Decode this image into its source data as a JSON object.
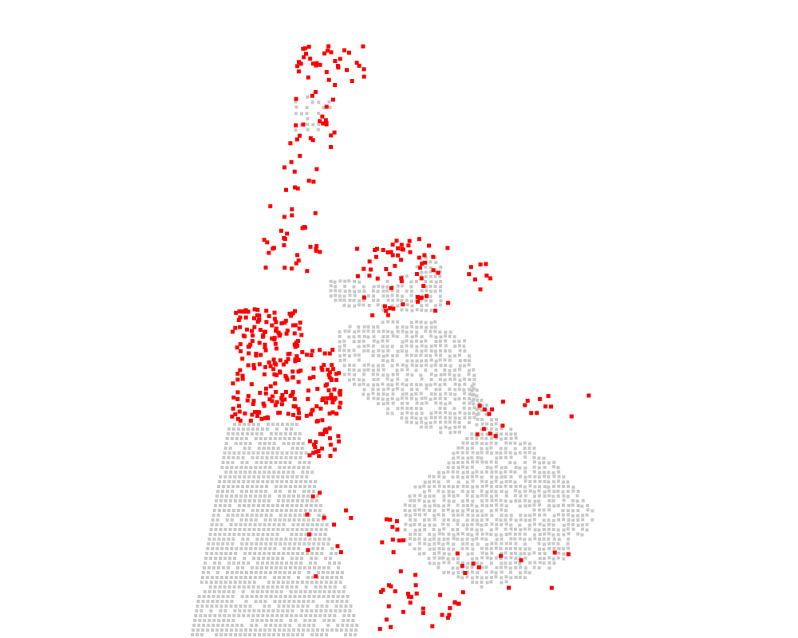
{
  "scene": {
    "background": "#ffffff",
    "colors": {
      "base_points": "#c8c8c8",
      "highlight_points": "#ff0000"
    }
  }
}
